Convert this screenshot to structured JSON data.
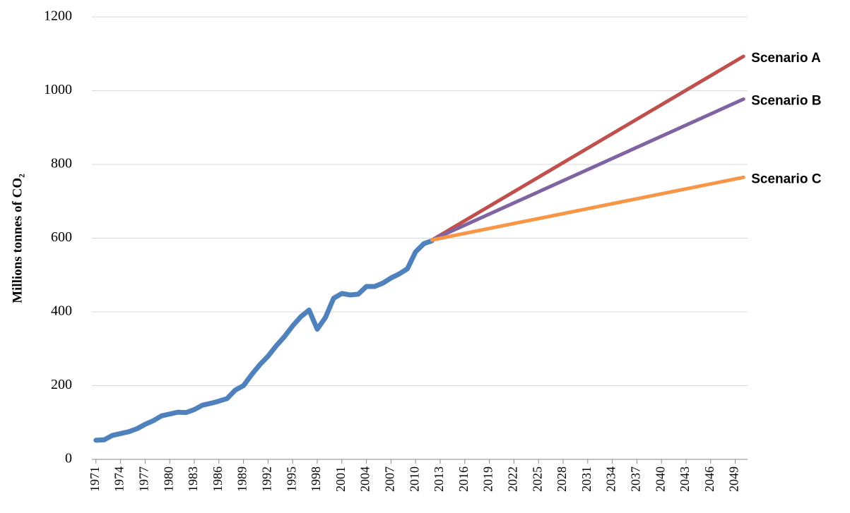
{
  "chart_data": {
    "type": "line",
    "y_label": "Millions  tonnes of CO₂",
    "xlim": [
      1970.5,
      2050.5
    ],
    "xticks": [
      1971,
      1974,
      1977,
      1980,
      1983,
      1986,
      1989,
      1992,
      1995,
      1998,
      2001,
      2004,
      2007,
      2010,
      2013,
      2016,
      2019,
      2022,
      2025,
      2028,
      2031,
      2034,
      2037,
      2040,
      2043,
      2046,
      2049
    ],
    "ylim": [
      0,
      1200
    ],
    "yticks": [
      0,
      200,
      400,
      600,
      800,
      1000,
      1200
    ],
    "grid": true,
    "series": [
      {
        "color": "#4f81bd",
        "x": [
          1971,
          1972,
          1973,
          1974,
          1975,
          1976,
          1977,
          1978,
          1979,
          1980,
          1981,
          1982,
          1983,
          1984,
          1985,
          1986,
          1987,
          1988,
          1989,
          1990,
          1991,
          1992,
          1993,
          1994,
          1995,
          1996,
          1997,
          1998,
          1999,
          2000,
          2001,
          2002,
          2003,
          2004,
          2005,
          2006,
          2007,
          2008,
          2009,
          2010,
          2011,
          2012
        ],
        "values": [
          52,
          53,
          65,
          70,
          75,
          83,
          95,
          105,
          118,
          123,
          128,
          127,
          135,
          147,
          152,
          158,
          165,
          188,
          200,
          230,
          257,
          280,
          308,
          333,
          362,
          387,
          405,
          353,
          385,
          437,
          450,
          446,
          448,
          469,
          469,
          478,
          492,
          503,
          517,
          563,
          585,
          593
        ]
      },
      {
        "name": "Scenario A",
        "color": "#c0504d",
        "x": [
          2012,
          2050
        ],
        "values": [
          595,
          1093
        ]
      },
      {
        "name": "Scenario B",
        "color": "#8064a2",
        "x": [
          2012,
          2050
        ],
        "values": [
          595,
          977
        ]
      },
      {
        "name": "Scenario C",
        "color": "#f79646",
        "x": [
          2012,
          2050
        ],
        "values": [
          595,
          765
        ]
      }
    ]
  }
}
